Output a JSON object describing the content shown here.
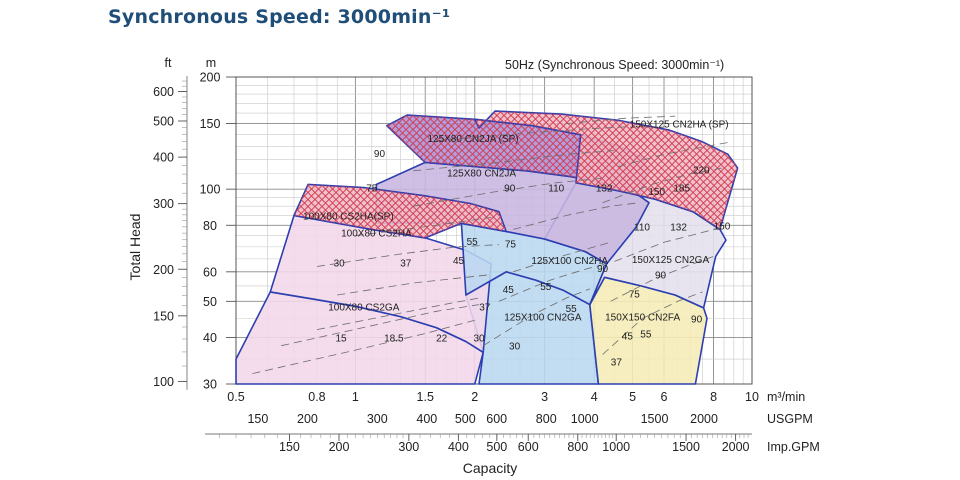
{
  "page": {
    "title": "Synchronous Speed: 3000min⁻¹"
  },
  "chart_data": {
    "type": "area",
    "title": "50Hz (Synchronous Speed: 3000min⁻¹)",
    "xlabel": "Capacity",
    "ylabel": "Total Head",
    "x_scale": "log",
    "y_scale": "log",
    "xlim": [
      0.5,
      10
    ],
    "ylim": [
      30,
      200
    ],
    "x_unit": "m³/min",
    "y_unit": "m",
    "y_unit_ft": "ft",
    "usgpm_unit": "USGPM",
    "impgpm_unit": "Imp.GPM",
    "x_ticks": [
      {
        "v": 0.5,
        "label": "0.5"
      },
      {
        "v": 0.8,
        "label": "0.8"
      },
      {
        "v": 1,
        "label": "1"
      },
      {
        "v": 1.5,
        "label": "1.5"
      },
      {
        "v": 2,
        "label": "2"
      },
      {
        "v": 3,
        "label": "3"
      },
      {
        "v": 4,
        "label": "4"
      },
      {
        "v": 5,
        "label": "5"
      },
      {
        "v": 6,
        "label": "6"
      },
      {
        "v": 8,
        "label": "8"
      },
      {
        "v": 10,
        "label": "10"
      }
    ],
    "x_grid": [
      0.5,
      0.6,
      0.7,
      0.8,
      0.9,
      1,
      1.1,
      1.2,
      1.3,
      1.4,
      1.5,
      1.6,
      1.7,
      1.8,
      1.9,
      2,
      2.2,
      2.4,
      2.6,
      2.8,
      3,
      3.5,
      4,
      4.5,
      5,
      5.5,
      6,
      6.5,
      7,
      7.5,
      8,
      8.5,
      9,
      9.5,
      10
    ],
    "x_grid_major": [
      0.5,
      1,
      1.5,
      2,
      3,
      4,
      5,
      6,
      8,
      10
    ],
    "y_ticks_m": [
      {
        "v": 30,
        "label": "30"
      },
      {
        "v": 40,
        "label": "40"
      },
      {
        "v": 50,
        "label": "50"
      },
      {
        "v": 60,
        "label": "60"
      },
      {
        "v": 80,
        "label": "80"
      },
      {
        "v": 100,
        "label": "100"
      },
      {
        "v": 150,
        "label": "150"
      },
      {
        "v": 200,
        "label": "200"
      }
    ],
    "y_grid": [
      30,
      35,
      40,
      45,
      50,
      55,
      60,
      65,
      70,
      75,
      80,
      85,
      90,
      95,
      100,
      110,
      120,
      130,
      140,
      150,
      160,
      170,
      180,
      190,
      200
    ],
    "y_grid_major": [
      30,
      40,
      50,
      60,
      80,
      100,
      150,
      200
    ],
    "y_ticks_ft": [
      {
        "v": 100,
        "label": "100"
      },
      {
        "v": 150,
        "label": "150"
      },
      {
        "v": 200,
        "label": "200"
      },
      {
        "v": 300,
        "label": "300"
      },
      {
        "v": 400,
        "label": "400"
      },
      {
        "v": 500,
        "label": "500"
      },
      {
        "v": 600,
        "label": "600"
      }
    ],
    "usgpm_ticks": [
      {
        "v": 150,
        "label": "150"
      },
      {
        "v": 200,
        "label": "200"
      },
      {
        "v": 300,
        "label": "300"
      },
      {
        "v": 400,
        "label": "400"
      },
      {
        "v": 500,
        "label": "500"
      },
      {
        "v": 600,
        "label": "600"
      },
      {
        "v": 800,
        "label": "800"
      },
      {
        "v": 1000,
        "label": "1000"
      },
      {
        "v": 1500,
        "label": "1500"
      },
      {
        "v": 2000,
        "label": "2000"
      }
    ],
    "impgpm_ticks": [
      {
        "v": 150,
        "label": "150"
      },
      {
        "v": 200,
        "label": "200"
      },
      {
        "v": 300,
        "label": "300"
      },
      {
        "v": 400,
        "label": "400"
      },
      {
        "v": 500,
        "label": "500"
      },
      {
        "v": 600,
        "label": "600"
      },
      {
        "v": 800,
        "label": "800"
      },
      {
        "v": 1000,
        "label": "1000"
      },
      {
        "v": 1500,
        "label": "1500"
      },
      {
        "v": 2000,
        "label": "2000"
      }
    ],
    "regions": [
      {
        "name": "100X80 CS2GA",
        "fill": "#f3d7ea",
        "hatch": false,
        "label_at": [
          1.05,
          48.5
        ],
        "polygon": [
          [
            0.5,
            35
          ],
          [
            0.61,
            53
          ],
          [
            0.8,
            50.5
          ],
          [
            1,
            48.5
          ],
          [
            1.3,
            45.5
          ],
          [
            1.6,
            42.5
          ],
          [
            1.9,
            39
          ],
          [
            2.1,
            36.5
          ],
          [
            2,
            30
          ],
          [
            0.5,
            30
          ]
        ]
      },
      {
        "name": "125X100 CN2GA",
        "fill": "#b9d7f0",
        "hatch": false,
        "label_at": [
          2.97,
          45.5
        ],
        "polygon": [
          [
            1.9,
            52
          ],
          [
            2.4,
            60
          ],
          [
            2.85,
            57
          ],
          [
            3.35,
            53.5
          ],
          [
            3.9,
            49
          ],
          [
            4.1,
            30
          ],
          [
            2.05,
            30
          ],
          [
            2.1,
            36.5
          ]
        ]
      },
      {
        "name": "150X150 CN2FA",
        "fill": "#f5ecb5",
        "hatch": false,
        "label_at": [
          5.3,
          45.5
        ],
        "polygon": [
          [
            3.9,
            49
          ],
          [
            4.25,
            58
          ],
          [
            5.25,
            55
          ],
          [
            6.4,
            52
          ],
          [
            7.55,
            48
          ],
          [
            7.7,
            45
          ],
          [
            7.2,
            30
          ],
          [
            4.1,
            30
          ]
        ]
      },
      {
        "name": "100X80 CS2HA",
        "fill": "#f3d7ea",
        "hatch": false,
        "label_at": [
          1.13,
          76.5
        ],
        "polygon": [
          [
            0.7,
            85
          ],
          [
            1.1,
            78
          ],
          [
            1.5,
            74
          ],
          [
            1.9,
            68.5
          ],
          [
            2.2,
            63
          ],
          [
            2.1,
            36.5
          ],
          [
            1.9,
            39
          ],
          [
            1.6,
            42.5
          ],
          [
            1.3,
            45.5
          ],
          [
            1,
            48.5
          ],
          [
            0.8,
            50.5
          ],
          [
            0.61,
            53
          ]
        ]
      },
      {
        "name": "125X100 CN2HA",
        "fill": "#b9d7f0",
        "hatch": false,
        "label_at": [
          3.47,
          64.5
        ],
        "polygon": [
          [
            1.85,
            81
          ],
          [
            2.4,
            77
          ],
          [
            3,
            73.5
          ],
          [
            3.8,
            68
          ],
          [
            4.3,
            63
          ],
          [
            3.9,
            49
          ],
          [
            3.35,
            53.5
          ],
          [
            2.85,
            57
          ],
          [
            2.4,
            60
          ],
          [
            1.9,
            52
          ]
        ]
      },
      {
        "name": "150X125 CN2GA",
        "fill": "#e4e0ed",
        "hatch": false,
        "label_at": [
          6.23,
          65
        ],
        "polygon": [
          [
            3.6,
            104
          ],
          [
            4.6,
            99
          ],
          [
            5.7,
            94
          ],
          [
            7.1,
            87
          ],
          [
            8.3,
            78
          ],
          [
            8.6,
            73
          ],
          [
            8.1,
            66
          ],
          [
            7.55,
            48
          ],
          [
            6.4,
            52
          ],
          [
            5.25,
            55
          ],
          [
            4.25,
            58
          ],
          [
            3.9,
            49
          ],
          [
            4.3,
            63
          ],
          [
            3.8,
            68
          ],
          [
            3,
            73.5
          ]
        ]
      },
      {
        "name": "125X80 CN2JA",
        "fill": "#c8b6e0",
        "hatch": false,
        "label_at": [
          2.08,
          111
        ],
        "polygon": [
          [
            1.13,
            103
          ],
          [
            1.5,
            118
          ],
          [
            2,
            115
          ],
          [
            2.7,
            112
          ],
          [
            3.5,
            108
          ],
          [
            4.2,
            104
          ],
          [
            5.2,
            96
          ],
          [
            5.5,
            92
          ],
          [
            5.1,
            79
          ],
          [
            4.3,
            63
          ],
          [
            3.8,
            68
          ],
          [
            3,
            73.5
          ],
          [
            2.4,
            77
          ],
          [
            1.85,
            81
          ],
          [
            1.13,
            81
          ]
        ]
      },
      {
        "name": "100X80 CS2HA(SP)",
        "fill": "#f0b9c5",
        "hatch": true,
        "label_at": [
          0.96,
          85
        ],
        "polygon": [
          [
            0.7,
            85
          ],
          [
            0.76,
            103
          ],
          [
            1.05,
            101
          ],
          [
            1.5,
            96
          ],
          [
            1.95,
            91.5
          ],
          [
            2.3,
            87
          ],
          [
            2.4,
            77
          ],
          [
            1.85,
            81
          ],
          [
            1.5,
            74
          ],
          [
            1.1,
            78
          ]
        ]
      },
      {
        "name": "125X80 CN2JA (SP)",
        "fill": "#a98fd6",
        "hatch": true,
        "label_at": [
          1.98,
          137
        ],
        "polygon": [
          [
            1.2,
            148
          ],
          [
            1.35,
            158
          ],
          [
            2,
            154
          ],
          [
            2.8,
            148
          ],
          [
            3.7,
            140
          ],
          [
            4.6,
            131
          ],
          [
            5.25,
            122
          ],
          [
            5.5,
            112
          ],
          [
            5.2,
            96
          ],
          [
            4.2,
            104
          ],
          [
            3.5,
            108
          ],
          [
            2.7,
            112
          ],
          [
            2,
            115
          ],
          [
            1.5,
            118
          ]
        ]
      },
      {
        "name": "150X125 CN2HA (SP)",
        "fill": "#f0b9c5",
        "hatch": true,
        "label_at": [
          6.55,
          150
        ],
        "polygon": [
          [
            2.05,
            146
          ],
          [
            2.25,
            162
          ],
          [
            3.3,
            159
          ],
          [
            4.6,
            153
          ],
          [
            6.2,
            144
          ],
          [
            7.5,
            134
          ],
          [
            8.7,
            124
          ],
          [
            9.2,
            114
          ],
          [
            8.3,
            78
          ],
          [
            7.1,
            87
          ],
          [
            5.7,
            94
          ],
          [
            4.6,
            99
          ],
          [
            3.6,
            104
          ],
          [
            3.7,
            140
          ],
          [
            2.8,
            148
          ],
          [
            2,
            154
          ]
        ]
      }
    ],
    "dashed_curves": [
      [
        [
          0.55,
          32
        ],
        [
          1,
          37
        ],
        [
          1.5,
          41
        ],
        [
          2.0,
          44.5
        ]
      ],
      [
        [
          0.65,
          38
        ],
        [
          1.1,
          43
        ],
        [
          1.6,
          47
        ],
        [
          2.05,
          49
        ]
      ],
      [
        [
          0.8,
          42
        ],
        [
          1.3,
          46.5
        ],
        [
          1.75,
          49.5
        ],
        [
          2.05,
          51
        ]
      ],
      [
        [
          0.9,
          52
        ],
        [
          1.4,
          56
        ],
        [
          1.9,
          58
        ],
        [
          2.2,
          59
        ]
      ],
      [
        [
          0.8,
          62
        ],
        [
          1.3,
          67
        ],
        [
          1.8,
          70
        ],
        [
          2.3,
          71
        ]
      ],
      [
        [
          1.0,
          75
        ],
        [
          1.6,
          80
        ],
        [
          2.2,
          84
        ]
      ],
      [
        [
          2.1,
          38
        ],
        [
          2.8,
          46
        ],
        [
          3.4,
          51
        ],
        [
          3.9,
          54
        ]
      ],
      [
        [
          2.3,
          50
        ],
        [
          3.1,
          57
        ],
        [
          3.8,
          61
        ],
        [
          4.3,
          63
        ]
      ],
      [
        [
          2.5,
          60
        ],
        [
          3.3,
          66
        ],
        [
          4.0,
          70
        ],
        [
          4.4,
          72
        ]
      ],
      [
        [
          4.2,
          36
        ],
        [
          5.3,
          45
        ],
        [
          6.5,
          50
        ],
        [
          7.5,
          53
        ]
      ],
      [
        [
          4.4,
          50
        ],
        [
          5.6,
          57
        ],
        [
          6.8,
          62
        ],
        [
          8.0,
          66
        ]
      ],
      [
        [
          4.5,
          64
        ],
        [
          6.0,
          72
        ],
        [
          7.3,
          76
        ],
        [
          8.4,
          79
        ]
      ],
      [
        [
          2.5,
          78
        ],
        [
          3.4,
          85
        ],
        [
          4.4,
          90
        ],
        [
          5.2,
          92
        ]
      ],
      [
        [
          1.4,
          90
        ],
        [
          2.2,
          98
        ],
        [
          3.2,
          104
        ],
        [
          4.2,
          107
        ]
      ],
      [
        [
          1.4,
          112
        ],
        [
          2.3,
          118
        ],
        [
          3.4,
          124
        ],
        [
          4.5,
          127
        ]
      ],
      [
        [
          1.6,
          135
        ],
        [
          2.6,
          141
        ],
        [
          3.8,
          145
        ],
        [
          4.8,
          147
        ]
      ],
      [
        [
          4.2,
          92
        ],
        [
          5.6,
          103
        ],
        [
          7.0,
          110
        ],
        [
          8.4,
          114
        ]
      ],
      [
        [
          4.6,
          115
        ],
        [
          6.0,
          124
        ],
        [
          7.6,
          130
        ],
        [
          8.9,
          134
        ]
      ],
      [
        [
          3.4,
          150
        ],
        [
          4.8,
          155
        ],
        [
          6.4,
          157
        ]
      ]
    ],
    "duty_labels": [
      {
        "x": 0.91,
        "y": 63.5,
        "label": "30"
      },
      {
        "x": 1.34,
        "y": 63.5,
        "label": "37"
      },
      {
        "x": 1.82,
        "y": 64.5,
        "label": "45"
      },
      {
        "x": 1.97,
        "y": 72.5,
        "label": "55"
      },
      {
        "x": 2.46,
        "y": 71.5,
        "label": "75"
      },
      {
        "x": 0.92,
        "y": 40,
        "label": "15"
      },
      {
        "x": 1.25,
        "y": 40,
        "label": "18.5"
      },
      {
        "x": 1.65,
        "y": 40,
        "label": "22"
      },
      {
        "x": 2.05,
        "y": 40,
        "label": "30"
      },
      {
        "x": 2.43,
        "y": 54,
        "label": "45"
      },
      {
        "x": 3.02,
        "y": 55,
        "label": "55"
      },
      {
        "x": 2.12,
        "y": 48.5,
        "label": "37"
      },
      {
        "x": 2.52,
        "y": 38,
        "label": "30"
      },
      {
        "x": 3.5,
        "y": 48,
        "label": "55"
      },
      {
        "x": 4.2,
        "y": 61.5,
        "label": "90"
      },
      {
        "x": 4.55,
        "y": 34.5,
        "label": "37"
      },
      {
        "x": 4.85,
        "y": 40.5,
        "label": "45"
      },
      {
        "x": 5.4,
        "y": 41,
        "label": "55"
      },
      {
        "x": 5.05,
        "y": 52.5,
        "label": "75"
      },
      {
        "x": 7.25,
        "y": 45,
        "label": "90"
      },
      {
        "x": 5.28,
        "y": 79.5,
        "label": "110"
      },
      {
        "x": 6.53,
        "y": 79.5,
        "label": "132"
      },
      {
        "x": 8.4,
        "y": 80,
        "label": "150"
      },
      {
        "x": 5.88,
        "y": 59,
        "label": "90"
      },
      {
        "x": 1.15,
        "y": 125,
        "label": "90"
      },
      {
        "x": 1.1,
        "y": 101,
        "label": "75"
      },
      {
        "x": 2.45,
        "y": 101,
        "label": "90"
      },
      {
        "x": 3.21,
        "y": 101,
        "label": "110"
      },
      {
        "x": 4.24,
        "y": 101,
        "label": "132"
      },
      {
        "x": 5.75,
        "y": 99,
        "label": "150"
      },
      {
        "x": 6.65,
        "y": 101,
        "label": "185"
      },
      {
        "x": 7.45,
        "y": 113,
        "label": "220"
      }
    ]
  }
}
